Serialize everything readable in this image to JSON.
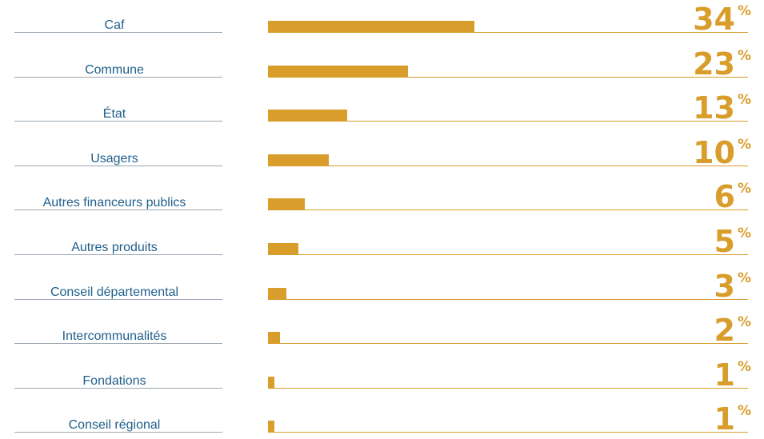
{
  "chart_data": {
    "type": "bar",
    "orientation": "horizontal",
    "categories": [
      "Caf",
      "Commune",
      "État",
      "Usagers",
      "Autres financeurs publics",
      "Autres produits",
      "Conseil départemental",
      "Intercommunalités",
      "Fondations",
      "Conseil régional"
    ],
    "values": [
      34,
      23,
      13,
      10,
      6,
      5,
      3,
      2,
      1,
      1
    ],
    "value_labels": [
      "34",
      "23",
      "13",
      "10",
      "6",
      "5",
      "3",
      "2",
      "1",
      "1"
    ],
    "unit": "%",
    "xlim": [
      0,
      100
    ],
    "colors": {
      "bar": "#d89d2b",
      "label": "#1f5f8b"
    }
  }
}
